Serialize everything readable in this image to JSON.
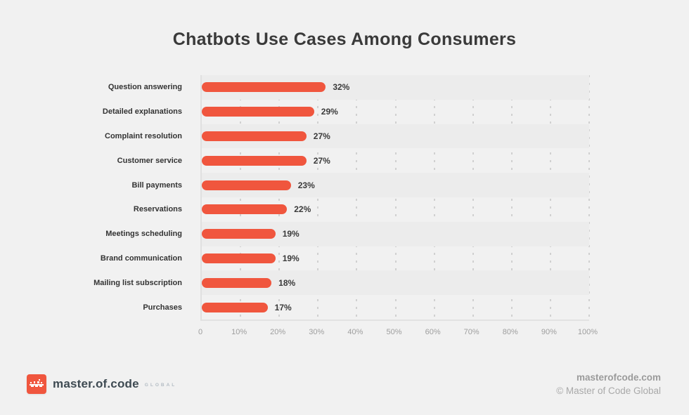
{
  "title": "Chatbots Use Cases Among Consumers",
  "chart_data": {
    "type": "bar",
    "orientation": "horizontal",
    "title": "Chatbots Use Cases Among Consumers",
    "categories": [
      "Question answering",
      "Detailed explanations",
      "Complaint resolution",
      "Customer service",
      "Bill payments",
      "Reservations",
      "Meetings scheduling",
      "Brand communication",
      "Mailing list subscription",
      "Purchases"
    ],
    "values": [
      32,
      29,
      27,
      27,
      23,
      22,
      19,
      19,
      18,
      17
    ],
    "value_labels": [
      "32%",
      "29%",
      "27%",
      "27%",
      "23%",
      "22%",
      "19%",
      "19%",
      "18%",
      "17%"
    ],
    "x_ticks": [
      "0",
      "10%",
      "20%",
      "30%",
      "40%",
      "50%",
      "60%",
      "70%",
      "80%",
      "90%",
      "100%"
    ],
    "xlim": [
      0,
      100
    ],
    "xlabel": "",
    "ylabel": "",
    "grid": "dotted-vertical",
    "row_striping": true,
    "bar_color": "#f0563e"
  },
  "colors": {
    "page_background": "#f1f1f1",
    "row_band": "#ececec",
    "accent": "#f0563e",
    "title_text": "#3a3a3a",
    "category_text": "#333333",
    "tick_text": "#9e9e9e",
    "gridline": "#d0d0d0",
    "logo_text": "#3e4a52",
    "footer_text": "#9b9b9b"
  },
  "footer": {
    "logo_text": "master.of.code",
    "logo_suffix": "GLOBAL",
    "website": "masterofcode.com",
    "copyright": "© Master of Code Global"
  }
}
